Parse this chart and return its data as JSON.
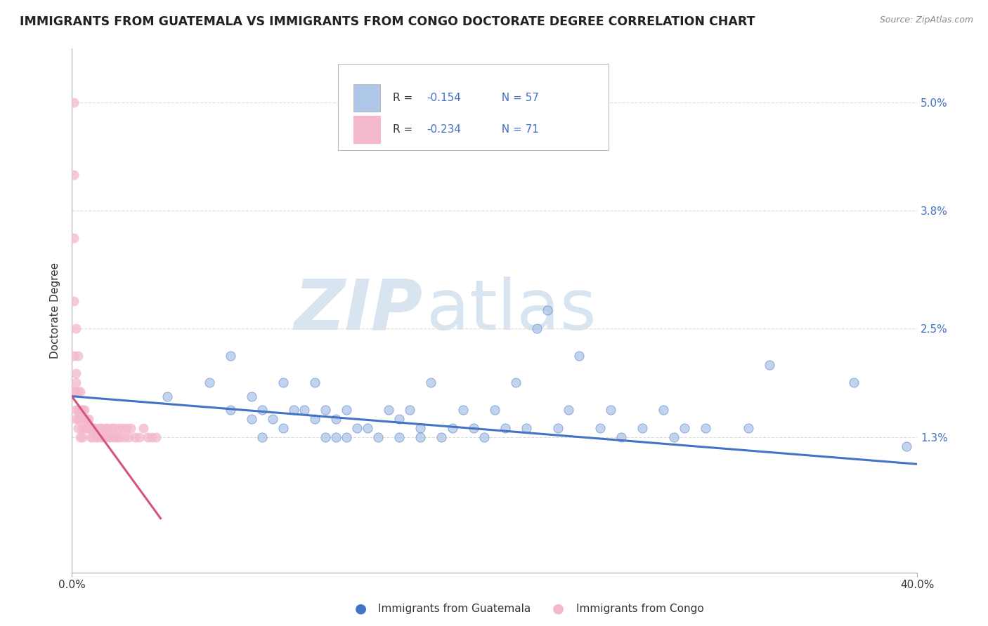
{
  "title": "IMMIGRANTS FROM GUATEMALA VS IMMIGRANTS FROM CONGO DOCTORATE DEGREE CORRELATION CHART",
  "source": "Source: ZipAtlas.com",
  "ylabel": "Doctorate Degree",
  "y_ticks": [
    0.0,
    0.013,
    0.025,
    0.038,
    0.05
  ],
  "y_tick_labels": [
    "",
    "1.3%",
    "2.5%",
    "3.8%",
    "5.0%"
  ],
  "x_range": [
    0.0,
    0.4
  ],
  "y_range": [
    -0.002,
    0.056
  ],
  "legend1_R": "R = ",
  "legend1_Rval": "-0.154",
  "legend1_N": "N = 57",
  "legend2_R": "R = ",
  "legend2_Rval": "-0.234",
  "legend2_N": "N = 71",
  "legend1_label": "Immigrants from Guatemala",
  "legend2_label": "Immigrants from Congo",
  "color_guatemala": "#aec6e8",
  "color_congo": "#f4b8cc",
  "color_line_guatemala": "#4472c4",
  "color_line_congo": "#d4547a",
  "watermark_color": "#d8e4f0",
  "guatemala_x": [
    0.045,
    0.065,
    0.075,
    0.075,
    0.085,
    0.085,
    0.09,
    0.09,
    0.095,
    0.1,
    0.1,
    0.105,
    0.11,
    0.115,
    0.115,
    0.12,
    0.12,
    0.125,
    0.125,
    0.13,
    0.13,
    0.135,
    0.14,
    0.145,
    0.15,
    0.155,
    0.155,
    0.16,
    0.165,
    0.165,
    0.17,
    0.175,
    0.18,
    0.185,
    0.19,
    0.195,
    0.2,
    0.205,
    0.21,
    0.215,
    0.22,
    0.225,
    0.23,
    0.235,
    0.24,
    0.25,
    0.255,
    0.26,
    0.27,
    0.28,
    0.285,
    0.29,
    0.3,
    0.32,
    0.33,
    0.37,
    0.395
  ],
  "guatemala_y": [
    0.0175,
    0.019,
    0.022,
    0.016,
    0.0175,
    0.015,
    0.016,
    0.013,
    0.015,
    0.014,
    0.019,
    0.016,
    0.016,
    0.015,
    0.019,
    0.016,
    0.013,
    0.015,
    0.013,
    0.016,
    0.013,
    0.014,
    0.014,
    0.013,
    0.016,
    0.013,
    0.015,
    0.016,
    0.014,
    0.013,
    0.019,
    0.013,
    0.014,
    0.016,
    0.014,
    0.013,
    0.016,
    0.014,
    0.019,
    0.014,
    0.025,
    0.027,
    0.014,
    0.016,
    0.022,
    0.014,
    0.016,
    0.013,
    0.014,
    0.016,
    0.013,
    0.014,
    0.014,
    0.014,
    0.021,
    0.019,
    0.012
  ],
  "congo_x": [
    0.001,
    0.001,
    0.001,
    0.001,
    0.001,
    0.001,
    0.002,
    0.002,
    0.002,
    0.002,
    0.003,
    0.003,
    0.003,
    0.004,
    0.004,
    0.005,
    0.005,
    0.006,
    0.006,
    0.007,
    0.007,
    0.008,
    0.008,
    0.009,
    0.009,
    0.01,
    0.01,
    0.011,
    0.012,
    0.013,
    0.014,
    0.015,
    0.016,
    0.016,
    0.017,
    0.018,
    0.019,
    0.02,
    0.021,
    0.022,
    0.023,
    0.024,
    0.025,
    0.026,
    0.027,
    0.028,
    0.03,
    0.032,
    0.034,
    0.036,
    0.038,
    0.04,
    0.002,
    0.002,
    0.003,
    0.003,
    0.004,
    0.004,
    0.005,
    0.005,
    0.006,
    0.007,
    0.008,
    0.009,
    0.01,
    0.012,
    0.014,
    0.016,
    0.018,
    0.02,
    0.022
  ],
  "congo_y": [
    0.05,
    0.042,
    0.035,
    0.028,
    0.022,
    0.018,
    0.025,
    0.02,
    0.018,
    0.015,
    0.022,
    0.018,
    0.015,
    0.018,
    0.015,
    0.016,
    0.014,
    0.015,
    0.014,
    0.015,
    0.014,
    0.015,
    0.014,
    0.014,
    0.013,
    0.014,
    0.013,
    0.014,
    0.013,
    0.014,
    0.014,
    0.013,
    0.014,
    0.013,
    0.014,
    0.013,
    0.014,
    0.014,
    0.013,
    0.014,
    0.013,
    0.014,
    0.013,
    0.014,
    0.013,
    0.014,
    0.013,
    0.013,
    0.014,
    0.013,
    0.013,
    0.013,
    0.019,
    0.016,
    0.016,
    0.014,
    0.016,
    0.013,
    0.016,
    0.013,
    0.016,
    0.014,
    0.014,
    0.014,
    0.014,
    0.013,
    0.013,
    0.013,
    0.013,
    0.013,
    0.013
  ],
  "guat_trend_x": [
    0.0,
    0.4
  ],
  "guat_trend_y": [
    0.0175,
    0.01
  ],
  "congo_trend_x": [
    0.0,
    0.042
  ],
  "congo_trend_y": [
    0.0175,
    0.004
  ]
}
